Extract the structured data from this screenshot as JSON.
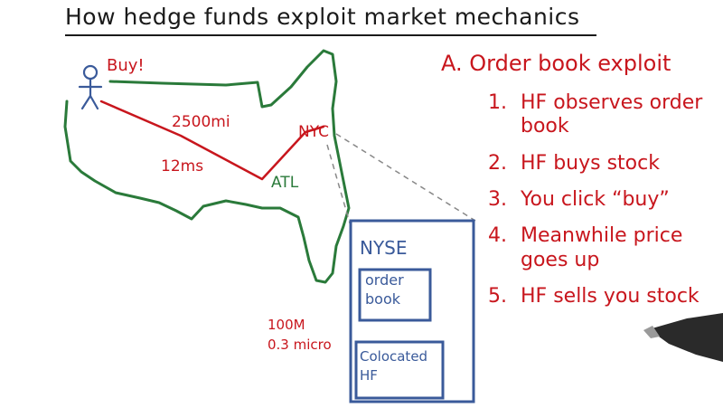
{
  "title": "How hedge funds exploit market mechanics",
  "map": {
    "buy_label": "Buy!",
    "distance_label": "2500mi",
    "latency_label": "12ms",
    "city_nyc": "NYC",
    "city_atl": "ATL"
  },
  "nyse": {
    "name": "NYSE",
    "order_book_label": "order book",
    "colocated_label": "Colocated HF"
  },
  "colo_stats": {
    "distance": "100M",
    "latency": "0.3 micro"
  },
  "exploit": {
    "heading": "A. Order book exploit",
    "steps": [
      {
        "num": "1.",
        "text": "HF observes order book"
      },
      {
        "num": "2.",
        "text": "HF buys stock"
      },
      {
        "num": "3.",
        "text": "You click “buy”"
      },
      {
        "num": "4.",
        "text": "Meanwhile price goes up"
      },
      {
        "num": "5.",
        "text": "HF sells you stock"
      }
    ]
  },
  "colors": {
    "ink": "#1a1a1a",
    "red": "#c8161d",
    "green": "#2a7a3a",
    "blue": "#3a5a9a"
  }
}
